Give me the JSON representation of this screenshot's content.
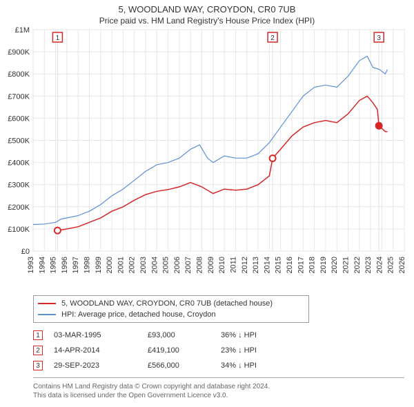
{
  "title_line1": "5, WOODLAND WAY, CROYDON, CR0 7UB",
  "title_line2": "Price paid vs. HM Land Registry's House Price Index (HPI)",
  "chart": {
    "type": "line",
    "background_color": "#ffffff",
    "plot_bg_color": "#ffffff",
    "grid_color": "#e6e6e6",
    "marker_vline_color": "#e0e0e0",
    "x": {
      "min": 1993,
      "max": 2026,
      "ticks": [
        1993,
        1994,
        1995,
        1996,
        1997,
        1998,
        1999,
        2000,
        2001,
        2002,
        2003,
        2004,
        2005,
        2006,
        2007,
        2008,
        2009,
        2010,
        2011,
        2012,
        2013,
        2014,
        2015,
        2016,
        2017,
        2018,
        2019,
        2020,
        2021,
        2022,
        2023,
        2024,
        2025,
        2026
      ],
      "tick_fontsize": 11
    },
    "y": {
      "min": 0,
      "max": 1000000,
      "ticks": [
        0,
        100000,
        200000,
        300000,
        400000,
        500000,
        600000,
        700000,
        800000,
        900000,
        1000000
      ],
      "tick_labels": [
        "£0",
        "£100K",
        "£200K",
        "£300K",
        "£400K",
        "£500K",
        "£600K",
        "£700K",
        "£800K",
        "£900K",
        "£1M"
      ],
      "tick_fontsize": 11
    },
    "series": [
      {
        "name": "5, WOODLAND WAY, CROYDON, CR0 7UB (detached house)",
        "color": "#d62728",
        "line_width": 1.5,
        "points": [
          [
            1995.17,
            93000
          ],
          [
            1996,
            100000
          ],
          [
            1997,
            110000
          ],
          [
            1998,
            130000
          ],
          [
            1999,
            150000
          ],
          [
            2000,
            180000
          ],
          [
            2001,
            200000
          ],
          [
            2002,
            230000
          ],
          [
            2003,
            255000
          ],
          [
            2004,
            270000
          ],
          [
            2005,
            278000
          ],
          [
            2006,
            290000
          ],
          [
            2007,
            310000
          ],
          [
            2008,
            290000
          ],
          [
            2009,
            260000
          ],
          [
            2010,
            280000
          ],
          [
            2011,
            275000
          ],
          [
            2012,
            280000
          ],
          [
            2013,
            300000
          ],
          [
            2014.0,
            340000
          ],
          [
            2014.29,
            419100
          ],
          [
            2015,
            460000
          ],
          [
            2016,
            520000
          ],
          [
            2017,
            560000
          ],
          [
            2018,
            580000
          ],
          [
            2019,
            590000
          ],
          [
            2020,
            580000
          ],
          [
            2021,
            620000
          ],
          [
            2022,
            680000
          ],
          [
            2022.7,
            700000
          ],
          [
            2023.2,
            670000
          ],
          [
            2023.6,
            640000
          ],
          [
            2023.74,
            566000
          ],
          [
            2024.3,
            540000
          ],
          [
            2024.5,
            540000
          ]
        ],
        "sale_markers": [
          {
            "x": 1995.17,
            "y": 93000,
            "n": "1"
          },
          {
            "x": 2014.29,
            "y": 419100,
            "n": "2"
          },
          {
            "x": 2023.74,
            "y": 566000,
            "n": "3",
            "filled": true
          }
        ]
      },
      {
        "name": "HPI: Average price, detached house, Croydon",
        "color": "#5b8fd6",
        "line_width": 1.2,
        "points": [
          [
            1993,
            120000
          ],
          [
            1994,
            122000
          ],
          [
            1995,
            130000
          ],
          [
            1995.5,
            145000
          ],
          [
            1996,
            150000
          ],
          [
            1997,
            160000
          ],
          [
            1998,
            180000
          ],
          [
            1999,
            210000
          ],
          [
            2000,
            250000
          ],
          [
            2001,
            280000
          ],
          [
            2002,
            320000
          ],
          [
            2003,
            360000
          ],
          [
            2004,
            390000
          ],
          [
            2005,
            400000
          ],
          [
            2006,
            420000
          ],
          [
            2007,
            460000
          ],
          [
            2007.8,
            480000
          ],
          [
            2008.5,
            420000
          ],
          [
            2009,
            400000
          ],
          [
            2010,
            430000
          ],
          [
            2011,
            420000
          ],
          [
            2012,
            420000
          ],
          [
            2013,
            440000
          ],
          [
            2014,
            490000
          ],
          [
            2015,
            560000
          ],
          [
            2016,
            630000
          ],
          [
            2017,
            700000
          ],
          [
            2018,
            740000
          ],
          [
            2019,
            750000
          ],
          [
            2020,
            740000
          ],
          [
            2021,
            790000
          ],
          [
            2022,
            860000
          ],
          [
            2022.7,
            880000
          ],
          [
            2023.2,
            830000
          ],
          [
            2023.8,
            820000
          ],
          [
            2024.3,
            800000
          ],
          [
            2024.5,
            820000
          ]
        ]
      }
    ],
    "marker_box": {
      "stroke": "#d62728",
      "fill": "#ffffff",
      "size": 14,
      "font_size": 10
    }
  },
  "legend": {
    "border_color": "#999999",
    "items": [
      {
        "label": "5, WOODLAND WAY, CROYDON, CR0 7UB (detached house)",
        "color": "#d62728"
      },
      {
        "label": "HPI: Average price, detached house, Croydon",
        "color": "#5b8fd6"
      }
    ]
  },
  "events": [
    {
      "n": "1",
      "date": "03-MAR-1995",
      "price": "£93,000",
      "delta": "36% ↓ HPI"
    },
    {
      "n": "2",
      "date": "14-APR-2014",
      "price": "£419,100",
      "delta": "23% ↓ HPI"
    },
    {
      "n": "3",
      "date": "29-SEP-2023",
      "price": "£566,000",
      "delta": "34% ↓ HPI"
    }
  ],
  "footer_line1": "Contains HM Land Registry data © Crown copyright and database right 2024.",
  "footer_line2": "This data is licensed under the Open Government Licence v3.0."
}
